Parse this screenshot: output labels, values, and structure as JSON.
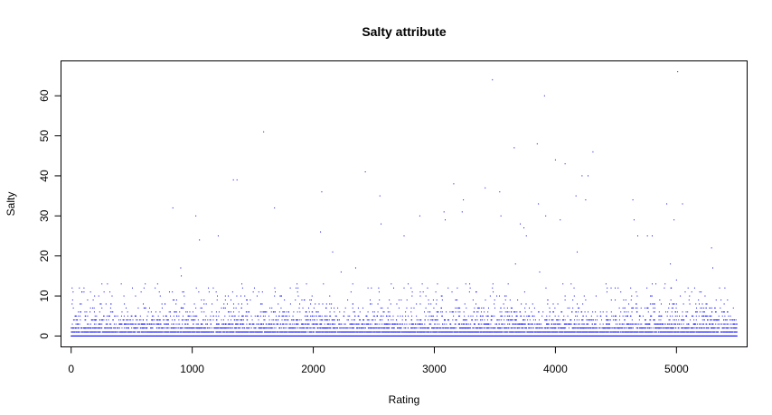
{
  "chart_data": {
    "type": "scatter",
    "title": "Salty attribute",
    "xlabel": "Rating",
    "ylabel": "Salty",
    "xlim": [
      -80,
      5580
    ],
    "ylim": [
      -2.6,
      68.6
    ],
    "x_ticks": [
      0,
      1000,
      2000,
      3000,
      4000,
      5000
    ],
    "x_tick_labels": [
      "0",
      "1000",
      "2000",
      "3000",
      "4000",
      "5000"
    ],
    "y_ticks": [
      0,
      10,
      20,
      30,
      40,
      50,
      60
    ],
    "y_tick_labels": [
      "0",
      "10",
      "20",
      "30",
      "40",
      "50",
      "60"
    ],
    "grid": false,
    "point_color": "#0000ff",
    "n_points": 5500,
    "dense_band": {
      "x_range": [
        0,
        5500
      ],
      "levels": [
        {
          "y": 0,
          "density": 1.0
        },
        {
          "y": 1,
          "density": 0.55
        },
        {
          "y": 2,
          "density": 0.35
        },
        {
          "y": 3,
          "density": 0.22
        },
        {
          "y": 4,
          "density": 0.14
        },
        {
          "y": 5,
          "density": 0.09
        },
        {
          "y": 6,
          "density": 0.06
        },
        {
          "y": 7,
          "density": 0.035
        },
        {
          "y": 8,
          "density": 0.025
        },
        {
          "y": 9,
          "density": 0.02
        },
        {
          "y": 10,
          "density": 0.015
        },
        {
          "y": 11,
          "density": 0.012
        },
        {
          "y": 12,
          "density": 0.012
        },
        {
          "y": 13,
          "density": 0.006
        }
      ]
    },
    "outliers": [
      {
        "x": 840,
        "y": 32
      },
      {
        "x": 905,
        "y": 17
      },
      {
        "x": 910,
        "y": 15
      },
      {
        "x": 920,
        "y": 11
      },
      {
        "x": 1030,
        "y": 30
      },
      {
        "x": 1060,
        "y": 24
      },
      {
        "x": 1215,
        "y": 25
      },
      {
        "x": 1340,
        "y": 39
      },
      {
        "x": 1370,
        "y": 39
      },
      {
        "x": 1590,
        "y": 51
      },
      {
        "x": 1680,
        "y": 32
      },
      {
        "x": 2070,
        "y": 36
      },
      {
        "x": 2060,
        "y": 26
      },
      {
        "x": 2160,
        "y": 21
      },
      {
        "x": 2230,
        "y": 16
      },
      {
        "x": 2350,
        "y": 17
      },
      {
        "x": 2430,
        "y": 41
      },
      {
        "x": 2550,
        "y": 35
      },
      {
        "x": 2560,
        "y": 28
      },
      {
        "x": 2750,
        "y": 25
      },
      {
        "x": 2880,
        "y": 30
      },
      {
        "x": 3080,
        "y": 31
      },
      {
        "x": 3090,
        "y": 29
      },
      {
        "x": 3160,
        "y": 38
      },
      {
        "x": 3240,
        "y": 34
      },
      {
        "x": 3230,
        "y": 31
      },
      {
        "x": 3420,
        "y": 37
      },
      {
        "x": 3480,
        "y": 64
      },
      {
        "x": 3540,
        "y": 36
      },
      {
        "x": 3550,
        "y": 30
      },
      {
        "x": 3660,
        "y": 47
      },
      {
        "x": 3670,
        "y": 18
      },
      {
        "x": 3710,
        "y": 28
      },
      {
        "x": 3740,
        "y": 27
      },
      {
        "x": 3760,
        "y": 25
      },
      {
        "x": 3850,
        "y": 48
      },
      {
        "x": 3860,
        "y": 33
      },
      {
        "x": 3870,
        "y": 16
      },
      {
        "x": 3910,
        "y": 60
      },
      {
        "x": 3920,
        "y": 30
      },
      {
        "x": 4000,
        "y": 44
      },
      {
        "x": 4040,
        "y": 29
      },
      {
        "x": 4080,
        "y": 43
      },
      {
        "x": 4170,
        "y": 35
      },
      {
        "x": 4180,
        "y": 21
      },
      {
        "x": 4220,
        "y": 40
      },
      {
        "x": 4250,
        "y": 34
      },
      {
        "x": 4270,
        "y": 40
      },
      {
        "x": 4310,
        "y": 46
      },
      {
        "x": 4640,
        "y": 34
      },
      {
        "x": 4650,
        "y": 29
      },
      {
        "x": 4680,
        "y": 25
      },
      {
        "x": 4760,
        "y": 25
      },
      {
        "x": 4800,
        "y": 25
      },
      {
        "x": 4920,
        "y": 33
      },
      {
        "x": 4950,
        "y": 18
      },
      {
        "x": 4980,
        "y": 29
      },
      {
        "x": 5000,
        "y": 14
      },
      {
        "x": 5010,
        "y": 66
      },
      {
        "x": 5050,
        "y": 33
      },
      {
        "x": 5290,
        "y": 22
      },
      {
        "x": 5300,
        "y": 17
      },
      {
        "x": 5400,
        "y": 12
      },
      {
        "x": 3260,
        "y": 13
      },
      {
        "x": 2900,
        "y": 13
      },
      {
        "x": 2480,
        "y": 12
      },
      {
        "x": 1410,
        "y": 13
      },
      {
        "x": 1550,
        "y": 11
      },
      {
        "x": 1810,
        "y": 12
      },
      {
        "x": 3610,
        "y": 13
      },
      {
        "x": 4130,
        "y": 13
      },
      {
        "x": 4460,
        "y": 12
      },
      {
        "x": 4830,
        "y": 13
      },
      {
        "x": 5150,
        "y": 12
      }
    ]
  }
}
